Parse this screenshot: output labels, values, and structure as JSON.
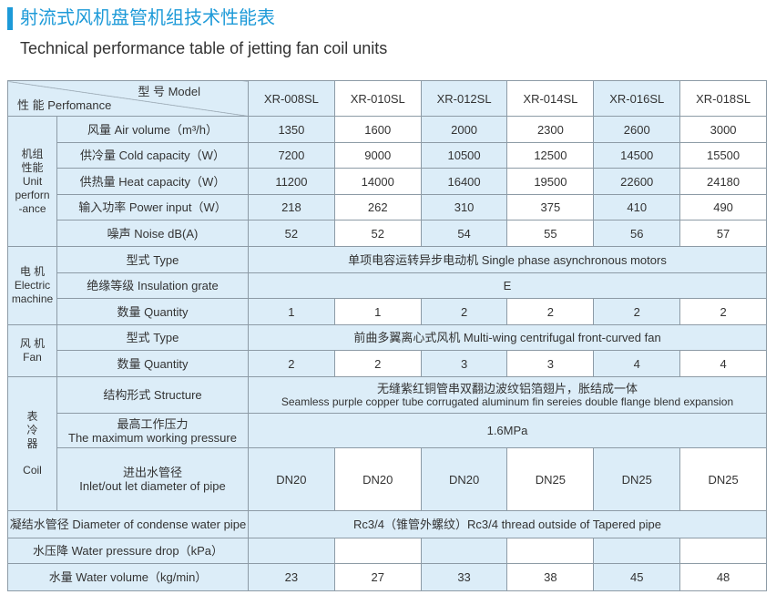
{
  "header": {
    "title": "射流式风机盘管机组技术性能表",
    "subtitle": "Technical performance table of jetting fan coil units"
  },
  "table": {
    "corner": {
      "model": "型 号  Model",
      "performance": "性 能  Perfomance"
    },
    "models": [
      "XR-008SL",
      "XR-010SL",
      "XR-012SL",
      "XR-014SL",
      "XR-016SL",
      "XR-018SL"
    ],
    "sections": [
      {
        "label_lines": [
          "机组",
          "性能",
          "Unit",
          "perforn",
          "-ance"
        ],
        "rows": [
          {
            "label": "风量 Air volume（m³/h）",
            "values": [
              1350,
              1600,
              2000,
              2300,
              2600,
              3000
            ]
          },
          {
            "label": "供冷量 Cold capacity（W）",
            "values": [
              7200,
              9000,
              10500,
              12500,
              14500,
              15500
            ]
          },
          {
            "label": "供热量 Heat capacity（W）",
            "values": [
              11200,
              14000,
              16400,
              19500,
              22600,
              24180
            ]
          },
          {
            "label": "输入功率 Power input（W）",
            "values": [
              218,
              262,
              310,
              375,
              410,
              490
            ]
          },
          {
            "label": "噪声 Noise dB(A)",
            "values": [
              52,
              52,
              54,
              55,
              56,
              57
            ]
          }
        ]
      },
      {
        "label_lines": [
          "电 机",
          "Electric",
          "machine"
        ],
        "rows": [
          {
            "label": "型式 Type",
            "merged": "单项电容运转异步电动机  Single phase asynchronous motors"
          },
          {
            "label": "绝缘等级 Insulation grate",
            "merged": "E"
          },
          {
            "label": "数量 Quantity",
            "values": [
              1,
              1,
              2,
              2,
              2,
              2
            ]
          }
        ]
      },
      {
        "label_lines": [
          "风 机",
          "Fan"
        ],
        "rows": [
          {
            "label": "型式 Type",
            "merged": "前曲多翼离心式风机  Multi-wing centrifugal front-curved fan"
          },
          {
            "label": "数量 Quantity",
            "values": [
              2,
              2,
              3,
              3,
              4,
              4
            ]
          }
        ]
      },
      {
        "label_lines": [
          "表",
          "冷",
          "器",
          "Coil"
        ],
        "rows": [
          {
            "label": "结构形式 Structure",
            "merged_lines": [
              "无缝紫红铜管串双翻边波纹铝箔翅片，胀结成一体",
              "Seamless purple copper tube corrugated aluminum fin sereies double flange blend expansion"
            ]
          },
          {
            "label_lines": [
              "最高工作压力",
              "The maximum working pressure"
            ],
            "merged": "1.6MPa"
          },
          {
            "label_lines": [
              "进出水管径",
              "Inlet/out let diameter of pipe"
            ],
            "values": [
              "DN20",
              "DN20",
              "DN20",
              "DN25",
              "DN25",
              "DN25"
            ]
          }
        ]
      },
      {
        "rows": [
          {
            "label": "凝结水管径 Diameter of condense water pipe",
            "merged": "Rc3/4（锥管外螺纹）Rc3/4 thread outside of Tapered pipe"
          },
          {
            "label": "水压降 Water pressure drop（kPa）",
            "values": [
              null,
              null,
              null,
              null,
              null,
              null
            ]
          },
          {
            "label": "水量 Water volume（kg/min）",
            "values": [
              23,
              27,
              33,
              38,
              45,
              48
            ]
          }
        ]
      }
    ]
  }
}
